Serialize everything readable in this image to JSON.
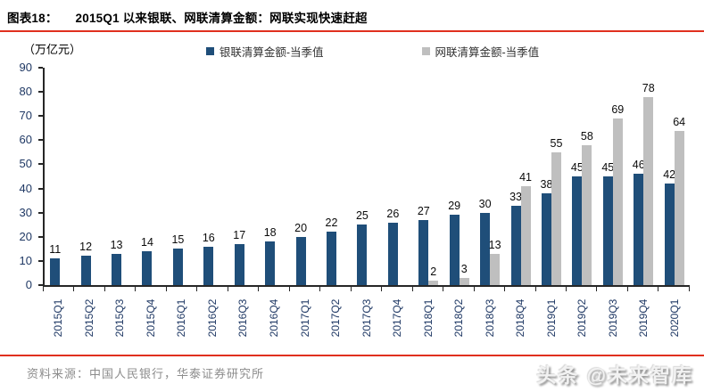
{
  "header": {
    "figure_label": "图表18：",
    "title": "2015Q1 以来银联、网联清算金额：网联实现快速赶超"
  },
  "chart_data": {
    "type": "bar",
    "title": "2015Q1 以来银联、网联清算金额：网联实现快速赶超",
    "unit_label": "（万亿元）",
    "categories": [
      "2015Q1",
      "2015Q2",
      "2015Q3",
      "2015Q4",
      "2016Q1",
      "2016Q2",
      "2016Q3",
      "2016Q4",
      "2017Q1",
      "2017Q2",
      "2017Q3",
      "2017Q4",
      "2018Q1",
      "2018Q2",
      "2018Q3",
      "2018Q4",
      "2019Q1",
      "2019Q2",
      "2019Q3",
      "2019Q4",
      "2020Q1"
    ],
    "series": [
      {
        "name": "银联清算金额-当季值",
        "color": "#1F4E79",
        "values": [
          11,
          12,
          13,
          14,
          15,
          16,
          17,
          18,
          20,
          22,
          25,
          26,
          27,
          29,
          30,
          33,
          38,
          45,
          45,
          46,
          42
        ]
      },
      {
        "name": "网联清算金额-当季值",
        "color": "#BFBFBF",
        "values": [
          null,
          null,
          null,
          null,
          null,
          null,
          null,
          null,
          null,
          null,
          null,
          null,
          2,
          3,
          13,
          41,
          55,
          58,
          69,
          78,
          64
        ]
      }
    ],
    "ylim": [
      0,
      90
    ],
    "yticks": [
      0,
      10,
      20,
      30,
      40,
      50,
      60,
      70,
      80,
      90
    ],
    "grid": false,
    "legend_position": "top",
    "data_labels": true
  },
  "footer": {
    "source": "资料来源：中国人民银行，华泰证券研究所"
  },
  "watermark": "头条 @未来智库",
  "colors": {
    "accent_red": "#E0301E",
    "bar_blue": "#1F4E79",
    "bar_gray": "#BFBFBF",
    "axis_text": "#1F3864",
    "source_text": "#8C8C8C"
  }
}
